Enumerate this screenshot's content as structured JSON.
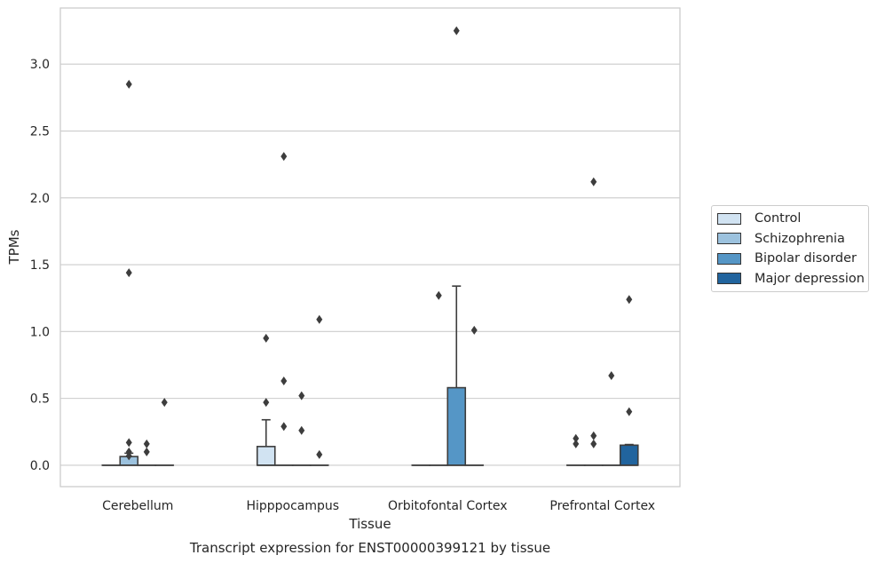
{
  "chart_data": {
    "type": "box",
    "title": "Transcript expression for ENST00000399121 by tissue",
    "xlabel": "Tissue",
    "ylabel": "TPMs",
    "ylim": [
      -0.16,
      3.42
    ],
    "yticks": [
      "0.0",
      "0.5",
      "1.0",
      "1.5",
      "2.0",
      "2.5",
      "3.0"
    ],
    "categories": [
      "Cerebellum",
      "Hipppocampus",
      "Orbitofontal Cortex",
      "Prefrontal Cortex"
    ],
    "grid": "horizontal",
    "legend_position": "right",
    "series": [
      {
        "name": "Control",
        "color": "#d1e3f2",
        "boxes": [
          {
            "q1": 0,
            "median": 0,
            "q3": 0,
            "whislo": 0,
            "whishi": 0,
            "fliers": []
          },
          {
            "q1": 0,
            "median": 0,
            "q3": 0.14,
            "whislo": 0,
            "whishi": 0.34,
            "fliers": [
              0.47,
              0.95
            ]
          },
          {
            "q1": 0,
            "median": 0,
            "q3": 0,
            "whislo": 0,
            "whishi": 0,
            "fliers": []
          },
          {
            "q1": 0,
            "median": 0,
            "q3": 0,
            "whislo": 0,
            "whishi": 0,
            "fliers": [
              0.16,
              0.2
            ]
          }
        ]
      },
      {
        "name": "Schizophrenia",
        "color": "#9cc2de",
        "boxes": [
          {
            "q1": 0,
            "median": 0,
            "q3": 0.065,
            "whislo": 0,
            "whishi": 0.09,
            "fliers": [
              0.07,
              0.1,
              0.17,
              1.44,
              2.85
            ]
          },
          {
            "q1": 0,
            "median": 0,
            "q3": 0,
            "whislo": 0,
            "whishi": 0,
            "fliers": [
              0.29,
              0.63,
              2.31
            ]
          },
          {
            "q1": 0,
            "median": 0,
            "q3": 0,
            "whislo": 0,
            "whishi": 0,
            "fliers": [
              1.27
            ]
          },
          {
            "q1": 0,
            "median": 0,
            "q3": 0,
            "whislo": 0,
            "whishi": 0,
            "fliers": [
              0.16,
              0.22,
              2.12
            ]
          }
        ]
      },
      {
        "name": "Bipolar disorder",
        "color": "#5596c6",
        "boxes": [
          {
            "q1": 0,
            "median": 0,
            "q3": 0,
            "whislo": 0,
            "whishi": 0,
            "fliers": [
              0.1,
              0.16
            ]
          },
          {
            "q1": 0,
            "median": 0,
            "q3": 0,
            "whislo": 0,
            "whishi": 0,
            "fliers": [
              0.26,
              0.52
            ]
          },
          {
            "q1": 0,
            "median": 0,
            "q3": 0.58,
            "whislo": 0,
            "whishi": 1.34,
            "fliers": [
              3.25
            ]
          },
          {
            "q1": 0,
            "median": 0,
            "q3": 0,
            "whislo": 0,
            "whishi": 0,
            "fliers": [
              0.67
            ]
          }
        ]
      },
      {
        "name": "Major depression",
        "color": "#21649e",
        "boxes": [
          {
            "q1": 0,
            "median": 0,
            "q3": 0,
            "whislo": 0,
            "whishi": 0,
            "fliers": [
              0.47
            ]
          },
          {
            "q1": 0,
            "median": 0,
            "q3": 0,
            "whislo": 0,
            "whishi": 0,
            "fliers": [
              0.08,
              1.09
            ]
          },
          {
            "q1": 0,
            "median": 0,
            "q3": 0,
            "whislo": 0,
            "whishi": 0,
            "fliers": [
              1.01
            ]
          },
          {
            "q1": 0,
            "median": 0,
            "q3": 0.15,
            "whislo": 0,
            "whishi": 0.155,
            "fliers": [
              0.4,
              1.24
            ]
          }
        ]
      }
    ]
  }
}
